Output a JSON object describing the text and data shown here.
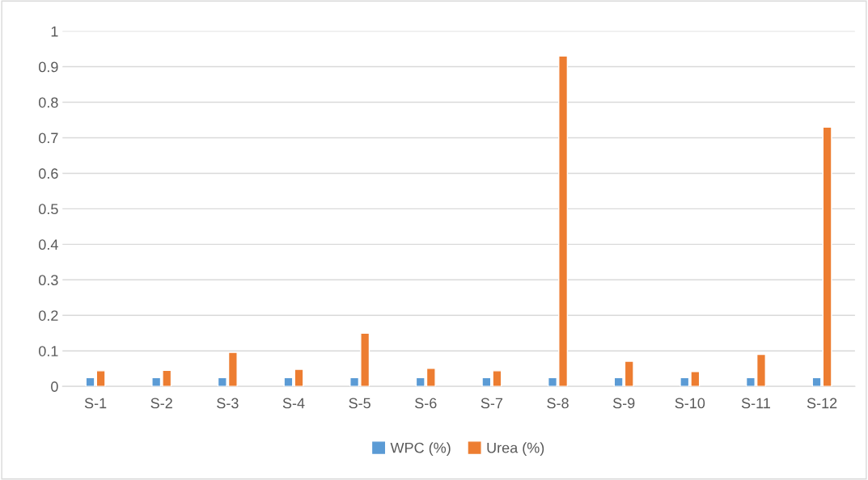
{
  "chart_data": {
    "type": "bar",
    "categories": [
      "S-1",
      "S-2",
      "S-3",
      "S-4",
      "S-5",
      "S-6",
      "S-7",
      "S-8",
      "S-9",
      "S-10",
      "S-11",
      "S-12"
    ],
    "series": [
      {
        "name": "WPC (%)",
        "color": "#5b9bd5",
        "values": [
          0.025,
          0.025,
          0.025,
          0.025,
          0.025,
          0.025,
          0.025,
          0.025,
          0.025,
          0.025,
          0.025,
          0.025
        ]
      },
      {
        "name": "Urea (%)",
        "color": "#ed7d31",
        "values": [
          0.044,
          0.045,
          0.096,
          0.048,
          0.15,
          0.051,
          0.044,
          0.93,
          0.071,
          0.042,
          0.09,
          0.73
        ]
      }
    ],
    "ylim": [
      0,
      1
    ],
    "yticks": [
      0,
      0.1,
      0.2,
      0.3,
      0.4,
      0.5,
      0.6,
      0.7,
      0.8,
      0.9,
      1
    ],
    "grid": "y",
    "legend": "bottom"
  }
}
